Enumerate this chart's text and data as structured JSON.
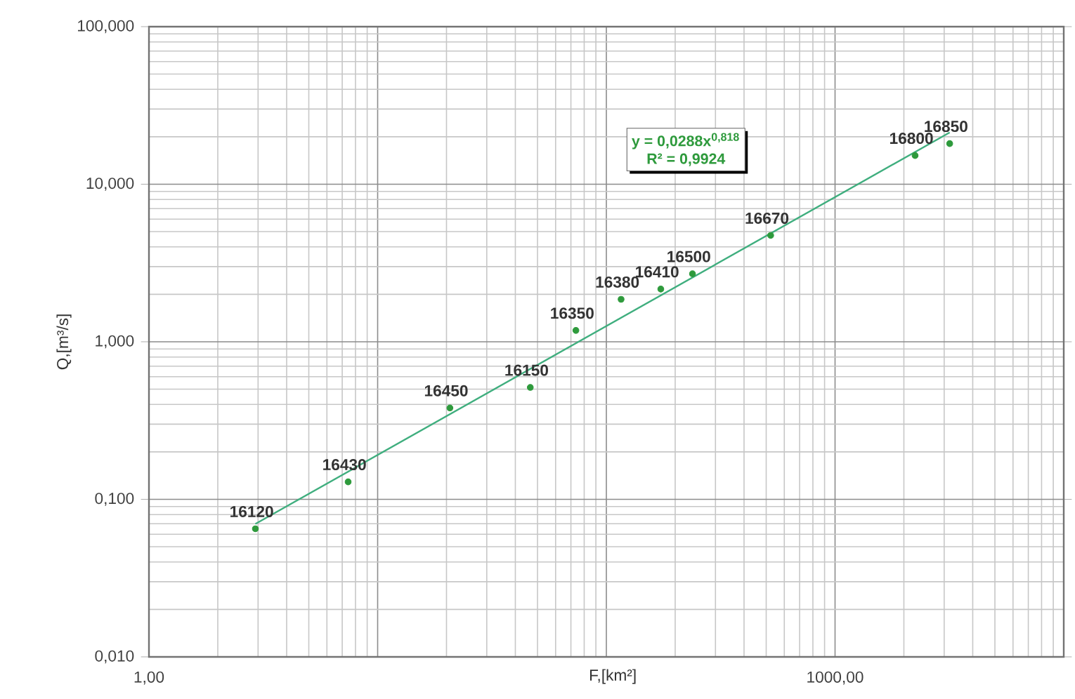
{
  "chart_data": {
    "type": "scatter",
    "xlabel": "F,[km²]",
    "ylabel": "Q,[m³/s]",
    "log": "xy",
    "grid": true,
    "xlim": [
      1,
      10000
    ],
    "xticks": [
      {
        "value": 1,
        "label": "1,00"
      },
      {
        "value": 10,
        "label": null
      },
      {
        "value": 100,
        "label": null
      },
      {
        "value": 1000,
        "label": "1000,00"
      },
      {
        "value": 10000,
        "label": null
      }
    ],
    "ylim": [
      0.01,
      100
    ],
    "yticks": [
      {
        "value": 0.01,
        "label": "0,010"
      },
      {
        "value": 0.1,
        "label": "0,100"
      },
      {
        "value": 1,
        "label": "1,000"
      },
      {
        "value": 10,
        "label": "10,000"
      },
      {
        "value": 100,
        "label": "100,000"
      }
    ],
    "annotations": [
      "y = 0,0288x$^{0,818}$",
      "R² = 0,9924",
      {
        "text": "16120",
        "x": 2.92,
        "y": 0.065
      },
      {
        "text": "16430",
        "x": 7.43,
        "y": 0.129
      },
      {
        "text": "16450",
        "x": 20.7,
        "y": 0.38
      },
      {
        "text": "16150",
        "x": 46.5,
        "y": 0.513
      },
      {
        "text": "16350",
        "x": 73.6,
        "y": 1.18
      },
      {
        "text": "16380",
        "x": 116,
        "y": 1.86
      },
      {
        "text": "16410",
        "x": 173,
        "y": 2.16
      },
      {
        "text": "16500",
        "x": 238,
        "y": 2.7
      },
      {
        "text": "16670",
        "x": 523,
        "y": 4.73
      },
      {
        "text": "16800",
        "x": 2239,
        "y": 15.2
      },
      {
        "text": "16850",
        "x": 3172,
        "y": 18.1
      }
    ],
    "series": [
      {
        "color": "#2e9a3c",
        "marker": "circle",
        "x": [
          2.92,
          7.43,
          20.7,
          46.5,
          73.6,
          116,
          173,
          238,
          523,
          2239,
          3172
        ],
        "values": [
          0.065,
          0.129,
          0.38,
          0.513,
          1.18,
          1.86,
          2.16,
          2.7,
          4.73,
          15.2,
          18.1
        ]
      },
      {
        "type": "line",
        "color": "#3fae7e",
        "line_style": "solid",
        "marker": "none",
        "x": [
          2.92,
          3172
        ],
        "values": [
          0.0698,
          21.3
        ]
      }
    ]
  }
}
